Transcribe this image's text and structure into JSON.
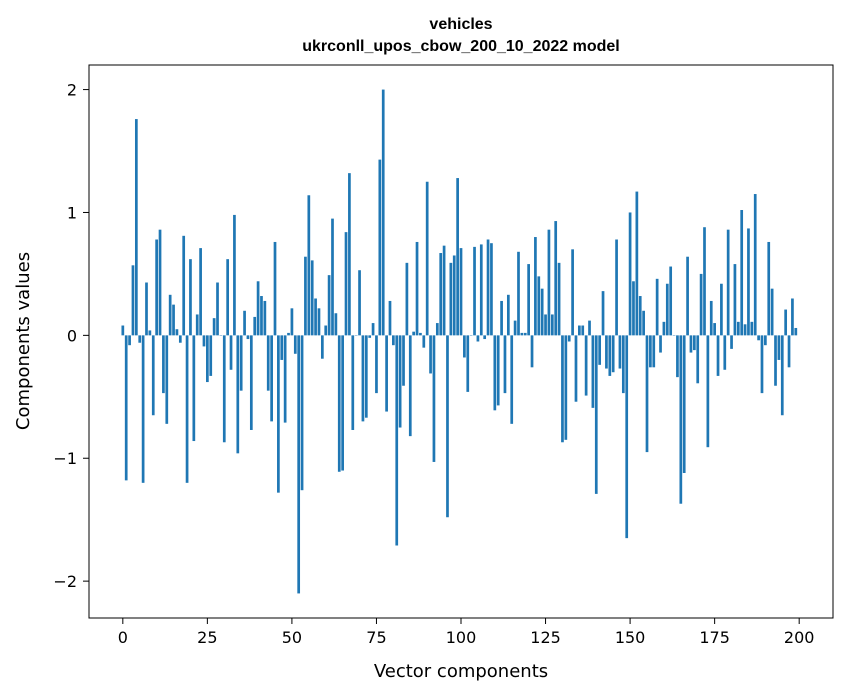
{
  "chart_data": {
    "type": "bar",
    "title": "vehicles",
    "subtitle": "ukrconll_upos_cbow_200_10_2022 model",
    "xlabel": "Vector components",
    "ylabel": "Components values",
    "xlim": [
      -10,
      210
    ],
    "ylim": [
      -2.3,
      2.2
    ],
    "xticks": [
      0,
      25,
      50,
      75,
      100,
      125,
      150,
      175,
      200
    ],
    "yticks": [
      -2,
      -1,
      0,
      1,
      2
    ],
    "ytick_labels": [
      "−2",
      "−1",
      "0",
      "1",
      "2"
    ],
    "grid": false,
    "bar_color": "#1f77b4",
    "values": [
      0.08,
      -1.18,
      -0.08,
      0.57,
      1.76,
      -0.06,
      -1.2,
      0.43,
      0.04,
      -0.65,
      0.78,
      0.86,
      -0.47,
      -0.72,
      0.33,
      0.25,
      0.05,
      -0.06,
      0.81,
      -1.2,
      0.62,
      -0.86,
      0.17,
      0.71,
      -0.09,
      -0.38,
      -0.33,
      0.14,
      0.43,
      0.0,
      -0.87,
      0.62,
      -0.28,
      0.98,
      -0.96,
      -0.45,
      0.2,
      -0.03,
      -0.77,
      0.15,
      0.44,
      0.32,
      0.28,
      -0.45,
      -0.7,
      0.76,
      -1.28,
      -0.2,
      -0.71,
      0.02,
      0.22,
      -0.15,
      -2.1,
      -1.26,
      0.64,
      1.14,
      0.61,
      0.3,
      0.22,
      -0.19,
      0.08,
      0.49,
      0.95,
      0.18,
      -1.11,
      -1.1,
      0.84,
      1.32,
      -0.77,
      0.0,
      0.53,
      -0.7,
      -0.67,
      -0.02,
      0.1,
      -0.47,
      1.43,
      2.0,
      -0.62,
      0.28,
      -0.08,
      -1.71,
      -0.75,
      -0.41,
      0.59,
      -0.82,
      0.03,
      0.76,
      0.02,
      -0.1,
      1.25,
      -0.31,
      -1.03,
      0.1,
      0.67,
      0.73,
      -1.48,
      0.59,
      0.65,
      1.28,
      0.71,
      -0.18,
      -0.46,
      0.0,
      0.72,
      -0.05,
      0.74,
      -0.03,
      0.78,
      0.75,
      -0.61,
      -0.57,
      0.28,
      -0.47,
      0.33,
      -0.72,
      0.12,
      0.68,
      0.02,
      0.02,
      0.58,
      -0.26,
      0.8,
      0.48,
      0.38,
      0.17,
      0.86,
      0.17,
      0.93,
      0.59,
      -0.87,
      -0.85,
      -0.05,
      0.7,
      -0.54,
      0.08,
      0.08,
      -0.49,
      0.12,
      -0.59,
      -1.29,
      -0.24,
      0.36,
      -0.27,
      -0.33,
      -0.3,
      0.78,
      -0.27,
      -0.47,
      -1.65,
      1.0,
      0.44,
      1.17,
      0.32,
      0.2,
      -0.95,
      -0.26,
      -0.26,
      0.46,
      -0.14,
      0.11,
      0.42,
      0.56,
      0.0,
      -0.34,
      -1.37,
      -1.12,
      0.64,
      -0.14,
      -0.12,
      -0.39,
      0.5,
      0.88,
      -0.91,
      0.28,
      0.1,
      -0.33,
      0.42,
      -0.28,
      0.86,
      -0.11,
      0.58,
      0.11,
      1.02,
      0.09,
      0.87,
      0.11,
      1.15,
      -0.04,
      -0.47,
      -0.08,
      0.76,
      0.38,
      -0.41,
      -0.2,
      -0.65,
      0.21,
      -0.26,
      0.3,
      0.06
    ]
  }
}
